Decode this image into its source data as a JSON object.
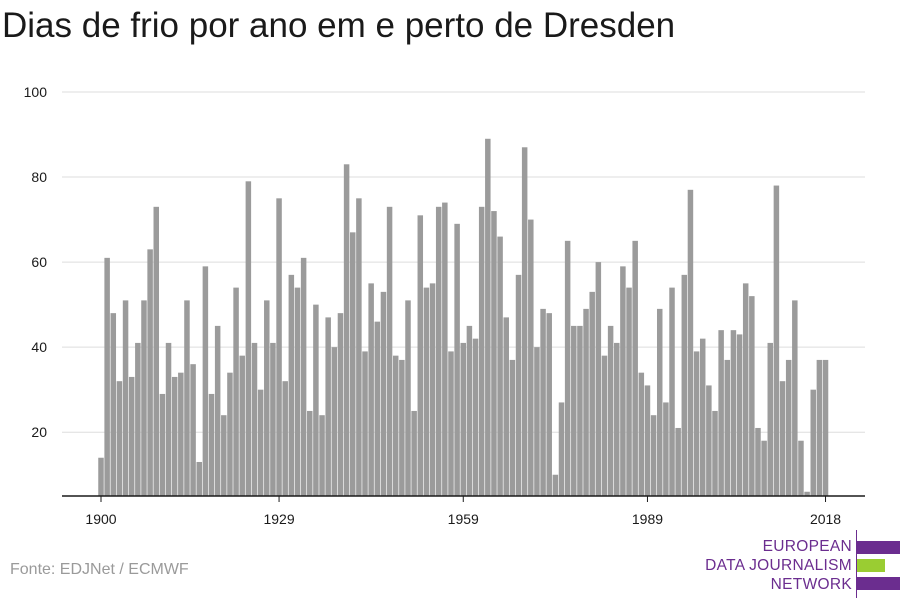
{
  "title": "Dias de frio por ano em e perto de Dresden",
  "source": "Fonte: EDJNet / ECMWF",
  "logo": {
    "line1": "EUROPEAN",
    "line2": "DATA JOURNALISM",
    "line3": "NETWORK"
  },
  "colors": {
    "bar": "#9b9b9b",
    "grid": "#dddddd",
    "axis": "#1a1a1a",
    "logo_purple": "#6b2d8f",
    "logo_green": "#9acd32"
  },
  "chart_data": {
    "type": "bar",
    "title": "Dias de frio por ano em e perto de Dresden",
    "xlabel": "",
    "ylabel": "",
    "ylim": [
      5,
      100
    ],
    "yticks": [
      20,
      40,
      60,
      80,
      100
    ],
    "xticks": [
      1900,
      1929,
      1959,
      1989,
      2018
    ],
    "grid": true,
    "x_start": 1900,
    "values": [
      14,
      61,
      48,
      32,
      51,
      33,
      41,
      51,
      63,
      73,
      29,
      41,
      33,
      34,
      51,
      36,
      13,
      59,
      29,
      45,
      24,
      34,
      54,
      38,
      79,
      41,
      30,
      51,
      41,
      75,
      32,
      57,
      54,
      61,
      25,
      50,
      24,
      47,
      40,
      48,
      83,
      67,
      75,
      39,
      55,
      46,
      53,
      73,
      38,
      37,
      51,
      25,
      71,
      54,
      55,
      73,
      74,
      39,
      69,
      41,
      45,
      42,
      73,
      89,
      72,
      66,
      47,
      37,
      57,
      87,
      70,
      40,
      49,
      48,
      10,
      27,
      65,
      45,
      45,
      49,
      53,
      60,
      38,
      45,
      41,
      59,
      54,
      65,
      34,
      31,
      24,
      49,
      27,
      54,
      21,
      57,
      77,
      39,
      42,
      31,
      25,
      44,
      37,
      44,
      43,
      55,
      52,
      21,
      18,
      41,
      78,
      32,
      37,
      51,
      18,
      6,
      30,
      37,
      37
    ]
  }
}
